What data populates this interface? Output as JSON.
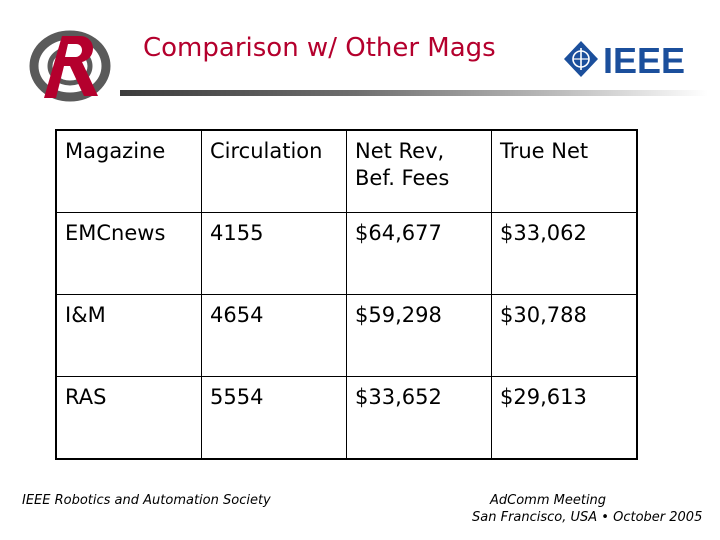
{
  "slide": {
    "title": "Comparison w/ Other Mags"
  },
  "logos": {
    "left": "ra-society-logo",
    "left_mark": "R",
    "right": "ieee-logo",
    "right_text": "IEEE"
  },
  "table": {
    "header": [
      "Magazine",
      "Circulation",
      "Net Rev,\nBef. Fees",
      "True Net"
    ],
    "rows": [
      [
        "EMCnews",
        "4155",
        "$64,677",
        "$33,062"
      ],
      [
        "I&M",
        "4654",
        "$59,298",
        "$30,788"
      ],
      [
        "RAS",
        "5554",
        "$33,652",
        "$29,613"
      ]
    ]
  },
  "footer": {
    "left": "IEEE Robotics and Automation Society",
    "right_line1": "AdComm Meeting",
    "right_line2": "San Francisco, USA • October  2005"
  },
  "colors": {
    "title": "#b4002d",
    "ieee_blue": "#1b4f9c",
    "logo_red": "#b4002d",
    "logo_gray": "#5a5a5a"
  }
}
